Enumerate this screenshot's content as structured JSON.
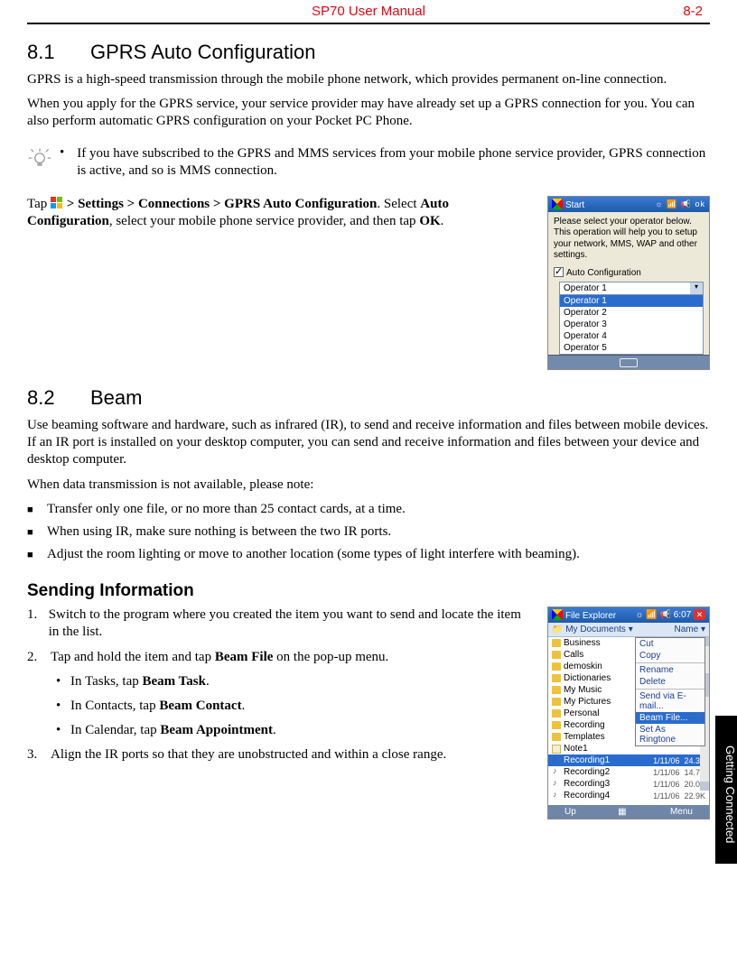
{
  "header": {
    "title": "SP70 User Manual",
    "page": "8-2"
  },
  "side_tab": "Getting Connected",
  "s81": {
    "num": "8.1",
    "title": "GPRS Auto Configuration",
    "p1": "GPRS is a high-speed transmission through the mobile phone network, which provides permanent on-line connection.",
    "p2": "When you apply for the GPRS service, your service provider may have already set up a GPRS connection for you. You can also perform automatic GPRS configuration on your Pocket PC Phone.",
    "note": "If you have subscribed to the GPRS and MMS services from your mobile phone service provider, GPRS connection is active, and so is MMS connection.",
    "tap_pre": "Tap ",
    "tap_path": " > Settings > Connections > GPRS Auto Configuration",
    "tap_after1": ". Select ",
    "tap_bold2": "Auto Configuration",
    "tap_after2": ", select your mobile phone service provider, and then tap ",
    "tap_bold3": "OK",
    "tap_after3": "."
  },
  "scr1": {
    "title": "Start",
    "icons": "☼ 📶 📢 ok",
    "hint": "Please select your operator below. This operation will help you to setup your network, MMS, WAP and other settings.",
    "check_label": "Auto Configuration",
    "combo": "Operator 1",
    "items": [
      "Operator 1",
      "Operator 2",
      "Operator 3",
      "Operator 4",
      "Operator 5"
    ]
  },
  "s82": {
    "num": "8.2",
    "title": "Beam",
    "p1": "Use beaming software and hardware, such as infrared (IR), to send and receive information and files between mobile devices. If an IR port is installed on your desktop computer, you can send and receive information and files between your device and desktop computer.",
    "p2": "When data transmission is not available, please note:",
    "b1": "Transfer only one file, or no more than 25 contact cards, at a time.",
    "b2": "When using IR, make sure nothing is between the two IR ports.",
    "b3": "Adjust the room lighting or move to another location (some types of light interfere with beaming)."
  },
  "sending": {
    "heading": "Sending Information",
    "s1": "Switch to the program where you created the item you want to send and locate the item in the list.",
    "s2_pre": "Tap and hold the item and tap ",
    "s2_bold": "Beam File",
    "s2_post": " on the pop-up menu.",
    "s2a_pre": "In Tasks, tap ",
    "s2a_bold": "Beam Task",
    "s2a_post": ".",
    "s2b_pre": "In Contacts, tap ",
    "s2b_bold": "Beam Contact",
    "s2b_post": ".",
    "s2c_pre": "In Calendar, tap ",
    "s2c_bold": "Beam Appointment",
    "s2c_post": ".",
    "s3": "Align the IR ports so that they are unobstructed and within a close range."
  },
  "scr2": {
    "title": "File Explorer",
    "right": "☼ 📶 📢 6:07",
    "crumb_left": "📁 My Documents ▾",
    "crumb_right": "Name ▾",
    "folders": [
      "Business",
      "Calls",
      "demoskin",
      "Dictionaries",
      "My Music",
      "My Pictures",
      "Personal",
      "Recording",
      "Templates"
    ],
    "note1": {
      "name": "Note1"
    },
    "sel": {
      "name": "Recording1",
      "date": "1/11/06",
      "size": "24.3K"
    },
    "rows": [
      {
        "name": "Recording2",
        "date": "1/11/06",
        "size": "14.7K"
      },
      {
        "name": "Recording3",
        "date": "1/11/06",
        "size": "20.0K"
      },
      {
        "name": "Recording4",
        "date": "1/11/06",
        "size": "22.9K"
      }
    ],
    "ctx": [
      "Cut",
      "Copy",
      "Rename",
      "Delete",
      "Send via E-mail...",
      "Beam File...",
      "Set As Ringtone"
    ],
    "bottom_left": "Up",
    "bottom_right": "Menu"
  }
}
